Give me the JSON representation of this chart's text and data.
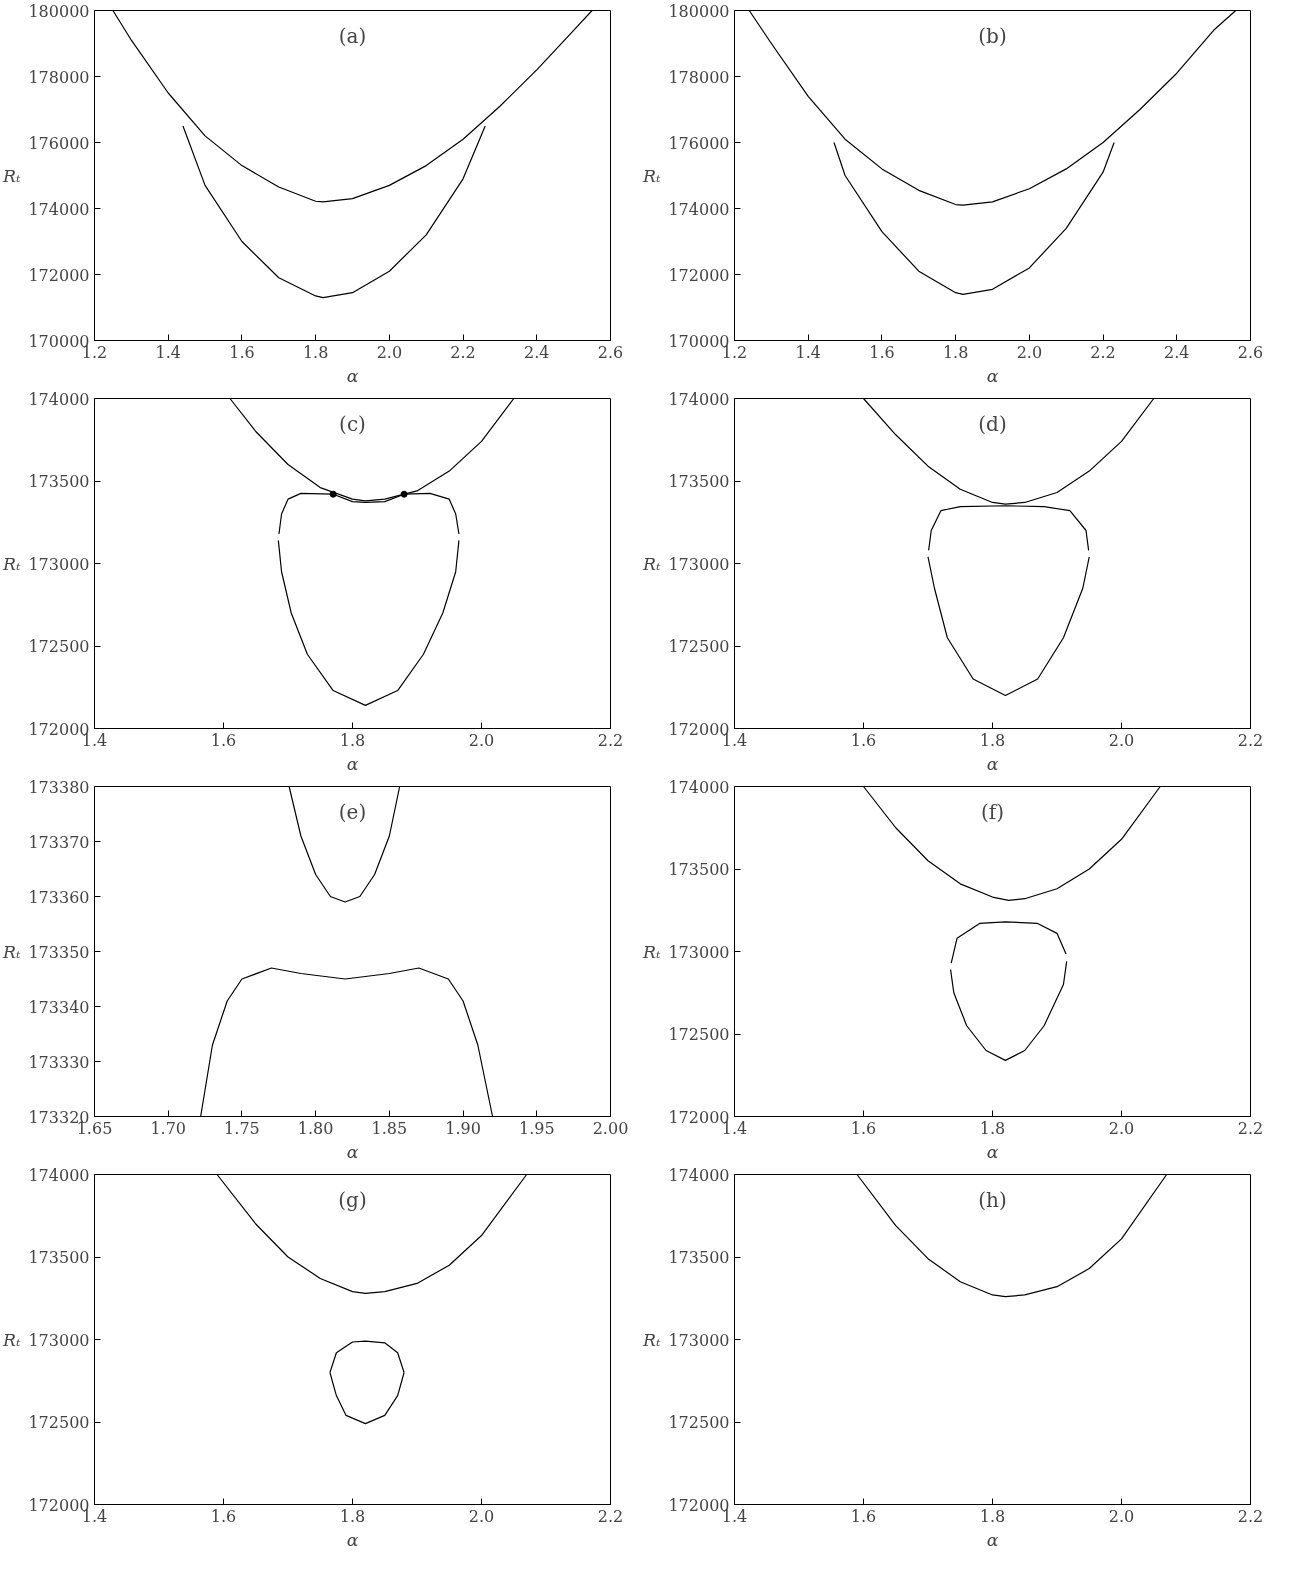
{
  "chart_data": [
    {
      "type": "line",
      "annotations": [
        "(a)"
      ],
      "xlabel": "α",
      "ylabel": "Rₜ",
      "xlim": [
        1.2,
        2.6
      ],
      "xticks": [
        1.2,
        1.4,
        1.6,
        1.8,
        {
          "value": 2,
          "label": "2.0"
        },
        2.2,
        2.4,
        2.6
      ],
      "ylim": [
        170000,
        180000
      ],
      "yticks": [
        170000,
        172000,
        174000,
        176000,
        178000,
        180000
      ],
      "grid": false,
      "series": [
        {
          "color": "#000000",
          "x": [
            1.25,
            1.3,
            1.4,
            1.5,
            1.6,
            1.7,
            1.8,
            1.82,
            1.9,
            2.0,
            2.1,
            2.2,
            2.3,
            2.4,
            2.5,
            2.55
          ],
          "values": [
            180000,
            179100,
            177500,
            176200,
            175300,
            174650,
            174220,
            174200,
            174300,
            174700,
            175300,
            176100,
            177100,
            178200,
            179400,
            180000
          ]
        },
        {
          "color": "#000000",
          "x": [
            1.44,
            1.5,
            1.6,
            1.7,
            1.8,
            1.82,
            1.9,
            2.0,
            2.1,
            2.2,
            2.26
          ],
          "values": [
            176500,
            174700,
            173000,
            171900,
            171350,
            171300,
            171450,
            172100,
            173200,
            174900,
            176500
          ]
        }
      ]
    },
    {
      "type": "line",
      "annotations": [
        "(b)"
      ],
      "xlabel": "α",
      "ylabel": "Rₜ",
      "xlim": [
        1.2,
        2.6
      ],
      "xticks": [
        1.2,
        1.4,
        1.6,
        1.8,
        {
          "value": 2,
          "label": "2.0"
        },
        2.2,
        2.4,
        2.6
      ],
      "ylim": [
        170000,
        180000
      ],
      "yticks": [
        170000,
        172000,
        174000,
        176000,
        178000,
        180000
      ],
      "grid": false,
      "series": [
        {
          "color": "#000000",
          "x": [
            1.24,
            1.3,
            1.4,
            1.5,
            1.6,
            1.7,
            1.8,
            1.82,
            1.9,
            2.0,
            2.1,
            2.2,
            2.3,
            2.4,
            2.5,
            2.56
          ],
          "values": [
            180000,
            179000,
            177400,
            176100,
            175200,
            174550,
            174120,
            174100,
            174200,
            174600,
            175200,
            176000,
            177000,
            178100,
            179400,
            180000
          ]
        },
        {
          "color": "#000000",
          "x": [
            1.47,
            1.5,
            1.6,
            1.7,
            1.8,
            1.82,
            1.9,
            2.0,
            2.1,
            2.2,
            2.23
          ],
          "values": [
            176000,
            175000,
            173300,
            172100,
            171450,
            171400,
            171550,
            172200,
            173400,
            175100,
            176000
          ]
        }
      ]
    },
    {
      "type": "line",
      "annotations": [
        "(c)"
      ],
      "xlabel": "α",
      "ylabel": "Rₜ",
      "xlim": [
        1.4,
        2.2
      ],
      "xticks": [
        1.4,
        1.6,
        1.8,
        {
          "value": 2,
          "label": "2.0"
        },
        2.2
      ],
      "ylim": [
        172000,
        174000
      ],
      "yticks": [
        172000,
        172500,
        173000,
        173500,
        174000
      ],
      "grid": false,
      "series": [
        {
          "color": "#000000",
          "x": [
            1.61,
            1.65,
            1.7,
            1.75,
            1.8,
            1.82,
            1.85,
            1.9,
            1.95,
            2.0,
            2.05
          ],
          "values": [
            174000,
            173800,
            173600,
            173460,
            173390,
            173380,
            173390,
            173440,
            173560,
            173740,
            174000
          ]
        },
        {
          "color": "#000000",
          "x": [
            1.686,
            1.69,
            1.7,
            1.72,
            1.77,
            1.8,
            1.82,
            1.85,
            1.88,
            1.92,
            1.95,
            1.96,
            1.965
          ],
          "values": [
            173180,
            173300,
            173390,
            173425,
            173420,
            173375,
            173370,
            173375,
            173420,
            173425,
            173390,
            173300,
            173180
          ]
        },
        {
          "color": "#000000",
          "x": [
            1.685,
            1.69,
            1.705,
            1.73,
            1.77,
            1.82,
            1.87,
            1.91,
            1.94,
            1.96,
            1.965
          ],
          "values": [
            173140,
            172950,
            172700,
            172450,
            172230,
            172140,
            172230,
            172450,
            172700,
            172950,
            173140
          ]
        },
        {
          "type": "scatter",
          "marker": "circle",
          "color": "#000000",
          "x": [
            1.77,
            1.88
          ],
          "values": [
            173420,
            173420
          ]
        }
      ]
    },
    {
      "type": "line",
      "annotations": [
        "(d)"
      ],
      "xlabel": "α",
      "ylabel": "Rₜ",
      "xlim": [
        1.4,
        2.2
      ],
      "xticks": [
        1.4,
        1.6,
        1.8,
        {
          "value": 2,
          "label": "2.0"
        },
        2.2
      ],
      "ylim": [
        172000,
        174000
      ],
      "yticks": [
        172000,
        172500,
        173000,
        173500,
        174000
      ],
      "grid": false,
      "series": [
        {
          "color": "#000000",
          "x": [
            1.6,
            1.65,
            1.7,
            1.75,
            1.8,
            1.82,
            1.85,
            1.9,
            1.95,
            2.0,
            2.05
          ],
          "values": [
            174000,
            173780,
            173590,
            173450,
            173370,
            173360,
            173370,
            173430,
            173560,
            173740,
            174000
          ]
        },
        {
          "color": "#000000",
          "x": [
            1.701,
            1.705,
            1.72,
            1.75,
            1.82,
            1.88,
            1.92,
            1.945,
            1.949
          ],
          "values": [
            173080,
            173200,
            173320,
            173345,
            173350,
            173345,
            173320,
            173200,
            173080
          ]
        },
        {
          "color": "#000000",
          "x": [
            1.7,
            1.71,
            1.73,
            1.77,
            1.82,
            1.87,
            1.91,
            1.94,
            1.95
          ],
          "values": [
            173040,
            172850,
            172550,
            172300,
            172200,
            172300,
            172550,
            172850,
            173040
          ]
        }
      ]
    },
    {
      "type": "line",
      "annotations": [
        "(e)"
      ],
      "xlabel": "α",
      "ylabel": "Rₜ",
      "xlim": [
        1.65,
        2.0
      ],
      "xticks": [
        1.65,
        {
          "value": 1.7,
          "label": "1.70"
        },
        1.75,
        {
          "value": 1.8,
          "label": "1.80"
        },
        1.85,
        {
          "value": 1.9,
          "label": "1.90"
        },
        1.95,
        {
          "value": 2,
          "label": "2.00"
        }
      ],
      "ylim": [
        173320,
        173380
      ],
      "yticks": [
        173320,
        173330,
        173340,
        173350,
        173360,
        173370,
        173380
      ],
      "grid": false,
      "series": [
        {
          "color": "#000000",
          "x": [
            1.782,
            1.79,
            1.8,
            1.81,
            1.82,
            1.83,
            1.84,
            1.85,
            1.857
          ],
          "values": [
            173380,
            173371,
            173364,
            173360,
            173359,
            173360,
            173364,
            173371,
            173380
          ]
        },
        {
          "color": "#000000",
          "x": [
            1.722,
            1.73,
            1.74,
            1.75,
            1.77,
            1.79,
            1.82,
            1.85,
            1.87,
            1.89,
            1.9,
            1.91,
            1.92
          ],
          "values": [
            173320,
            173333,
            173341,
            173345,
            173347,
            173346,
            173345,
            173346,
            173347,
            173345,
            173341,
            173333,
            173320
          ]
        }
      ]
    },
    {
      "type": "line",
      "annotations": [
        "(f)"
      ],
      "xlabel": "α",
      "ylabel": "Rₜ",
      "xlim": [
        1.4,
        2.2
      ],
      "xticks": [
        1.4,
        1.6,
        1.8,
        {
          "value": 2,
          "label": "2.0"
        },
        2.2
      ],
      "ylim": [
        172000,
        174000
      ],
      "yticks": [
        172000,
        172500,
        173000,
        173500,
        174000
      ],
      "grid": false,
      "series": [
        {
          "color": "#000000",
          "x": [
            1.6,
            1.65,
            1.7,
            1.75,
            1.8,
            1.825,
            1.85,
            1.9,
            1.95,
            2.0,
            2.06
          ],
          "values": [
            174000,
            173750,
            173550,
            173410,
            173330,
            173310,
            173320,
            173380,
            173500,
            173680,
            174000
          ]
        },
        {
          "color": "#000000",
          "x": [
            1.736,
            1.745,
            1.78,
            1.82,
            1.87,
            1.9,
            1.914
          ],
          "values": [
            172930,
            173080,
            173170,
            173180,
            173170,
            173110,
            172985
          ]
        },
        {
          "color": "#000000",
          "x": [
            1.735,
            1.74,
            1.76,
            1.79,
            1.82,
            1.85,
            1.88,
            1.91,
            1.915
          ],
          "values": [
            172890,
            172750,
            172550,
            172400,
            172340,
            172400,
            172550,
            172800,
            172940
          ]
        }
      ]
    },
    {
      "type": "line",
      "annotations": [
        "(g)"
      ],
      "xlabel": "α",
      "ylabel": "Rₜ",
      "xlim": [
        1.4,
        2.2
      ],
      "xticks": [
        1.4,
        1.6,
        1.8,
        {
          "value": 2,
          "label": "2.0"
        },
        2.2
      ],
      "ylim": [
        172000,
        174000
      ],
      "yticks": [
        172000,
        172500,
        173000,
        173500,
        174000
      ],
      "grid": false,
      "series": [
        {
          "color": "#000000",
          "x": [
            1.59,
            1.65,
            1.7,
            1.75,
            1.8,
            1.82,
            1.85,
            1.9,
            1.95,
            2.0,
            2.07
          ],
          "values": [
            174000,
            173700,
            173500,
            173370,
            173290,
            173280,
            173290,
            173340,
            173450,
            173630,
            174000
          ]
        },
        {
          "color": "#000000",
          "x": [
            1.765,
            1.775,
            1.8,
            1.82,
            1.85,
            1.87,
            1.88
          ],
          "values": [
            172800,
            172920,
            172985,
            172990,
            172980,
            172920,
            172800
          ]
        },
        {
          "color": "#000000",
          "x": [
            1.765,
            1.775,
            1.79,
            1.82,
            1.85,
            1.87,
            1.88
          ],
          "values": [
            172800,
            172660,
            172540,
            172490,
            172540,
            172660,
            172800
          ]
        }
      ]
    },
    {
      "type": "line",
      "annotations": [
        "(h)"
      ],
      "xlabel": "α",
      "ylabel": "Rₜ",
      "xlim": [
        1.4,
        2.2
      ],
      "xticks": [
        1.4,
        1.6,
        1.8,
        {
          "value": 2,
          "label": "2.0"
        },
        2.2
      ],
      "ylim": [
        172000,
        174000
      ],
      "yticks": [
        172000,
        172500,
        173000,
        173500,
        174000
      ],
      "grid": false,
      "series": [
        {
          "color": "#000000",
          "x": [
            1.59,
            1.65,
            1.7,
            1.75,
            1.8,
            1.82,
            1.85,
            1.9,
            1.95,
            2.0,
            2.07
          ],
          "values": [
            174000,
            173690,
            173490,
            173350,
            173270,
            173260,
            173270,
            173320,
            173430,
            173610,
            174000
          ]
        }
      ]
    }
  ]
}
